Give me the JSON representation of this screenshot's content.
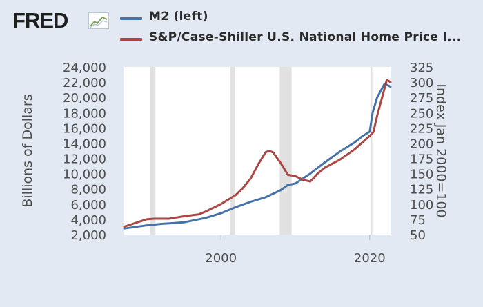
{
  "brand": {
    "logo_text": "FRED",
    "logo_icon": "chart-line-icon"
  },
  "legend": [
    {
      "label": "M2 (left)",
      "color": "#4572a7"
    },
    {
      "label": "S&P/Case-Shiller U.S. National Home Price I...",
      "color": "#aa4643"
    }
  ],
  "colors": {
    "background": "#e2e9f2",
    "plot_background": "#ffffff",
    "recession_shading": "#e1e1e1",
    "tick_text": "#4d4d4d"
  },
  "chart_data": {
    "type": "line",
    "x_axis": {
      "range": [
        1987,
        2022.8
      ],
      "ticks": [
        2000,
        2020
      ],
      "tick_labels": [
        "2000",
        "2020"
      ]
    },
    "y_left": {
      "label": "Billions of Dollars",
      "range": [
        2000,
        24000
      ],
      "ticks": [
        2000,
        4000,
        6000,
        8000,
        10000,
        12000,
        14000,
        16000,
        18000,
        20000,
        22000,
        24000
      ],
      "tick_labels": [
        "2,000",
        "4,000",
        "6,000",
        "8,000",
        "10,000",
        "12,000",
        "14,000",
        "16,000",
        "18,000",
        "20,000",
        "22,000",
        "24,000"
      ]
    },
    "y_right": {
      "label": "Index Jan 2000=100",
      "range": [
        50,
        325
      ],
      "ticks": [
        50,
        75,
        100,
        125,
        150,
        175,
        200,
        225,
        250,
        275,
        300,
        325
      ],
      "tick_labels": [
        "50",
        "75",
        "100",
        "125",
        "150",
        "175",
        "200",
        "225",
        "250",
        "275",
        "300",
        "325"
      ]
    },
    "recessions": [
      [
        1990.5,
        1991.2
      ],
      [
        2001.2,
        2001.9
      ],
      [
        2007.9,
        2009.5
      ],
      [
        2020.1,
        2020.35
      ]
    ],
    "grid": false,
    "series": [
      {
        "name": "M2 (left)",
        "axis": "left",
        "color": "#4572a7",
        "x": [
          1987,
          1990,
          1992,
          1995,
          1998,
          2000,
          2002,
          2004,
          2006,
          2008,
          2009,
          2010,
          2012,
          2014,
          2016,
          2018,
          2019,
          2020,
          2020.4,
          2021,
          2022,
          2022.8
        ],
        "y": [
          2800,
          3200,
          3400,
          3600,
          4200,
          4800,
          5600,
          6300,
          6900,
          7800,
          8500,
          8700,
          10000,
          11500,
          12900,
          14100,
          14900,
          15500,
          18000,
          20000,
          21800,
          21400
        ]
      },
      {
        "name": "S&P/Case-Shiller U.S. National Home Price I...",
        "axis": "right",
        "color": "#aa4643",
        "x": [
          1987,
          1988,
          1989,
          1990,
          1991,
          1993,
          1995,
          1997,
          1998,
          2000,
          2002,
          2003,
          2004,
          2005,
          2006,
          2006.5,
          2007,
          2008,
          2009,
          2010,
          2011,
          2012,
          2013,
          2014,
          2016,
          2018,
          2019,
          2020,
          2020.5,
          2021,
          2022,
          2022.3,
          2022.8
        ],
        "y": [
          63,
          67,
          71,
          75,
          76,
          76,
          80,
          83,
          88,
          100,
          115,
          127,
          142,
          165,
          185,
          187,
          185,
          168,
          148,
          146,
          140,
          137,
          150,
          160,
          173,
          190,
          201,
          212,
          218,
          245,
          290,
          304,
          300
        ]
      }
    ]
  }
}
